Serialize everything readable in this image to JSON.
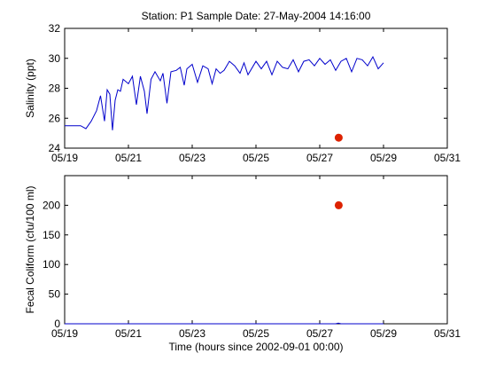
{
  "chart_data": [
    {
      "type": "line",
      "title": "Station: P1  Sample Date: 27-May-2004 14:16:00",
      "xlabel": "",
      "ylabel": "Salinity (ppt)",
      "x_tick_labels": [
        "05/19",
        "05/21",
        "05/23",
        "05/25",
        "05/27",
        "05/29",
        "05/31"
      ],
      "x_ticks": [
        "2004-05-19",
        "2004-05-21",
        "2004-05-23",
        "2004-05-25",
        "2004-05-27",
        "2004-05-29",
        "2004-05-31"
      ],
      "xlim": [
        "2004-05-19",
        "2004-05-31"
      ],
      "y_ticks": [
        24,
        26,
        28,
        30,
        32
      ],
      "ylim": [
        24,
        32
      ],
      "grid": false,
      "line_color": "#0000cc",
      "marker_color": "#dd2200",
      "series": [
        {
          "x": [
            "2004-05-19 00:00",
            "2004-05-19 12:00",
            "2004-05-19 16:00",
            "2004-05-19 20:00",
            "2004-05-20 00:00",
            "2004-05-20 03:00",
            "2004-05-20 06:00",
            "2004-05-20 08:00",
            "2004-05-20 10:00",
            "2004-05-20 12:00",
            "2004-05-20 14:00",
            "2004-05-20 16:00",
            "2004-05-20 18:00",
            "2004-05-20 20:00",
            "2004-05-21 00:00",
            "2004-05-21 03:00",
            "2004-05-21 06:00",
            "2004-05-21 09:00",
            "2004-05-21 12:00",
            "2004-05-21 14:00",
            "2004-05-21 17:00",
            "2004-05-21 20:00",
            "2004-05-22 00:00",
            "2004-05-22 02:00",
            "2004-05-22 05:00",
            "2004-05-22 08:00",
            "2004-05-22 12:00",
            "2004-05-22 15:00",
            "2004-05-22 18:00",
            "2004-05-22 20:00",
            "2004-05-23 00:00",
            "2004-05-23 04:00",
            "2004-05-23 08:00",
            "2004-05-23 12:00",
            "2004-05-23 15:00",
            "2004-05-23 18:00",
            "2004-05-23 21:00",
            "2004-05-24 00:00",
            "2004-05-24 04:00",
            "2004-05-24 08:00",
            "2004-05-24 12:00",
            "2004-05-24 15:00",
            "2004-05-24 18:00",
            "2004-05-25 00:00",
            "2004-05-25 04:00",
            "2004-05-25 08:00",
            "2004-05-25 12:00",
            "2004-05-25 16:00",
            "2004-05-25 20:00",
            "2004-05-26 00:00",
            "2004-05-26 04:00",
            "2004-05-26 08:00",
            "2004-05-26 12:00",
            "2004-05-26 16:00",
            "2004-05-26 20:00",
            "2004-05-27 00:00",
            "2004-05-27 04:00",
            "2004-05-27 08:00",
            "2004-05-27 12:00",
            "2004-05-27 16:00",
            "2004-05-27 20:00",
            "2004-05-28 00:00",
            "2004-05-28 04:00",
            "2004-05-28 08:00",
            "2004-05-28 12:00",
            "2004-05-28 16:00",
            "2004-05-28 20:00",
            "2004-05-29 00:00"
          ],
          "y": [
            25.5,
            25.5,
            25.3,
            25.8,
            26.5,
            27.5,
            25.8,
            27.9,
            27.6,
            25.2,
            27.2,
            27.9,
            27.8,
            28.6,
            28.3,
            28.8,
            26.9,
            28.8,
            27.8,
            26.3,
            28.6,
            29.1,
            28.5,
            29.0,
            27.0,
            29.1,
            29.2,
            29.4,
            28.2,
            29.3,
            29.6,
            28.4,
            29.5,
            29.3,
            28.3,
            29.3,
            29.0,
            29.2,
            29.8,
            29.5,
            29.0,
            29.7,
            28.9,
            29.8,
            29.3,
            29.8,
            28.9,
            29.8,
            29.4,
            29.3,
            29.9,
            29.1,
            29.8,
            29.9,
            29.5,
            30.0,
            29.6,
            29.9,
            29.2,
            29.8,
            30.0,
            29.1,
            30.0,
            29.9,
            29.5,
            30.1,
            29.3,
            29.7
          ]
        }
      ],
      "points": [
        {
          "x": "2004-05-27 14:16",
          "y": 24.7
        }
      ]
    },
    {
      "type": "line",
      "title": "",
      "xlabel": "Time (hours since 2002-09-01 00:00)",
      "ylabel": "Fecal Coliform (cfu/100 ml)",
      "x_tick_labels": [
        "05/19",
        "05/21",
        "05/23",
        "05/25",
        "05/27",
        "05/29",
        "05/31"
      ],
      "x_ticks": [
        "2004-05-19",
        "2004-05-21",
        "2004-05-23",
        "2004-05-25",
        "2004-05-27",
        "2004-05-29",
        "2004-05-31"
      ],
      "xlim": [
        "2004-05-19",
        "2004-05-31"
      ],
      "y_ticks": [
        0,
        50,
        100,
        150,
        200
      ],
      "ylim": [
        0,
        250
      ],
      "grid": false,
      "line_color": "#0000cc",
      "marker_color": "#dd2200",
      "series": [
        {
          "x": [
            "2004-05-19 00:00",
            "2004-05-27 12:00",
            "2004-05-27 14:00",
            "2004-05-27 16:00",
            "2004-05-29 00:00"
          ],
          "y": [
            0,
            0,
            1,
            0,
            0
          ]
        }
      ],
      "points": [
        {
          "x": "2004-05-27 14:16",
          "y": 200
        }
      ]
    }
  ]
}
